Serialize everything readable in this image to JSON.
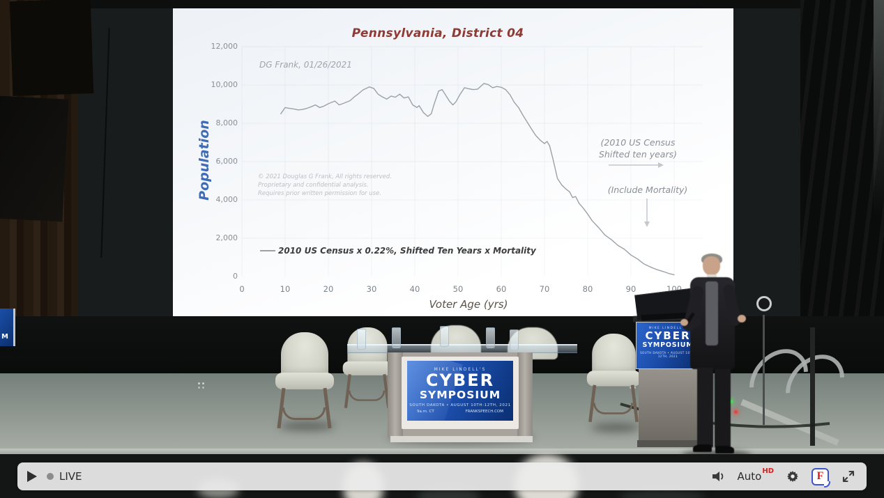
{
  "player": {
    "live_label": "LIVE",
    "quality_label": "Auto",
    "quality_badge": "HD",
    "icons": [
      "play-icon",
      "live-dot",
      "volume-icon",
      "settings-gear-icon",
      "frankspeech-logo-icon",
      "fullscreen-icon"
    ]
  },
  "screen": {
    "title": "Pennsylvania, District 04",
    "watermark": "DG Frank, 01/26/2021",
    "ylabel": "Population",
    "xlabel": "Voter Age (yrs)",
    "legend_label": "2010 US Census x 0.22%, Shifted Ten Years x Mortality",
    "copyright_lines": [
      "© 2021 Douglas G Frank, All rights reserved.",
      "Proprietary and confidential analysis.",
      "Requires prior written permission for use."
    ],
    "annotation_census": [
      "(2010 US Census",
      "Shifted ten years)"
    ],
    "annotation_mortality": "(Include Mortality)"
  },
  "chart_data": {
    "type": "line",
    "title": "Pennsylvania, District 04",
    "xlabel": "Voter Age (yrs)",
    "ylabel": "Population",
    "xlim": [
      0,
      100
    ],
    "ylim": [
      0,
      12000
    ],
    "x_ticks": [
      0,
      10,
      20,
      30,
      40,
      50,
      60,
      70,
      80,
      90,
      100
    ],
    "y_ticks": [
      0,
      2000,
      4000,
      6000,
      8000,
      10000,
      12000
    ],
    "y_tick_labels": [
      "0",
      "2,000",
      "4,000",
      "6,000",
      "8,000",
      "10,000",
      "12,000"
    ],
    "grid": "faint",
    "legend_position": "lower-left-inside",
    "annotations": [
      "(2010 US Census Shifted ten years) → right arrow",
      "(Include Mortality) ↓ down arrow"
    ],
    "series": [
      {
        "name": "2010 US Census x 0.22%, Shifted Ten Years x Mortality",
        "color": "#9ba1a7",
        "points": [
          [
            9,
            8500
          ],
          [
            10,
            8820
          ],
          [
            11,
            8780
          ],
          [
            12,
            8750
          ],
          [
            13,
            8700
          ],
          [
            14,
            8720
          ],
          [
            15,
            8780
          ],
          [
            16,
            8860
          ],
          [
            17,
            8960
          ],
          [
            18,
            8820
          ],
          [
            19,
            8900
          ],
          [
            20,
            9020
          ],
          [
            21.5,
            9160
          ],
          [
            22.5,
            8960
          ],
          [
            23.5,
            9040
          ],
          [
            25,
            9180
          ],
          [
            26,
            9380
          ],
          [
            27,
            9550
          ],
          [
            28,
            9740
          ],
          [
            29.5,
            9900
          ],
          [
            30.5,
            9820
          ],
          [
            31.5,
            9520
          ],
          [
            32.5,
            9380
          ],
          [
            33.5,
            9260
          ],
          [
            34.5,
            9420
          ],
          [
            35.5,
            9360
          ],
          [
            36.5,
            9520
          ],
          [
            37.5,
            9320
          ],
          [
            38.5,
            9380
          ],
          [
            39.5,
            8960
          ],
          [
            40.5,
            8820
          ],
          [
            41,
            8920
          ],
          [
            42,
            8560
          ],
          [
            43,
            8360
          ],
          [
            43.8,
            8500
          ],
          [
            44.5,
            9020
          ],
          [
            45.5,
            9680
          ],
          [
            46.3,
            9760
          ],
          [
            47,
            9520
          ],
          [
            48,
            9160
          ],
          [
            48.8,
            8960
          ],
          [
            49.5,
            9120
          ],
          [
            50.5,
            9520
          ],
          [
            51.5,
            9860
          ],
          [
            52.5,
            9800
          ],
          [
            53.5,
            9760
          ],
          [
            54.5,
            9780
          ],
          [
            56,
            10080
          ],
          [
            57,
            10020
          ],
          [
            58,
            9860
          ],
          [
            59,
            9920
          ],
          [
            60,
            9880
          ],
          [
            61,
            9760
          ],
          [
            62,
            9500
          ],
          [
            63,
            9100
          ],
          [
            64,
            8820
          ],
          [
            65,
            8420
          ],
          [
            66,
            8060
          ],
          [
            67,
            7700
          ],
          [
            68,
            7360
          ],
          [
            69,
            7120
          ],
          [
            70,
            6940
          ],
          [
            70.6,
            7050
          ],
          [
            71.2,
            6820
          ],
          [
            72,
            6100
          ],
          [
            73,
            5120
          ],
          [
            74,
            4780
          ],
          [
            75,
            4560
          ],
          [
            75.8,
            4420
          ],
          [
            76.5,
            4120
          ],
          [
            77.2,
            4180
          ],
          [
            78,
            3820
          ],
          [
            79,
            3560
          ],
          [
            80,
            3260
          ],
          [
            81,
            2920
          ],
          [
            82.5,
            2560
          ],
          [
            84,
            2160
          ],
          [
            85.5,
            1920
          ],
          [
            87,
            1620
          ],
          [
            88.5,
            1420
          ],
          [
            90,
            1120
          ],
          [
            91.5,
            920
          ],
          [
            93,
            660
          ],
          [
            94.5,
            500
          ],
          [
            96,
            360
          ],
          [
            97.5,
            260
          ],
          [
            99,
            140
          ],
          [
            100,
            90
          ]
        ]
      }
    ]
  },
  "stage": {
    "desk_sign": {
      "brand": "MIKE LINDELL'S",
      "title1": "CYBER",
      "title2": "SYMPOSIUM",
      "date_line": "SOUTH DAKOTA • AUGUST 10TH-12TH, 2021",
      "time_left": "9a.m. CT",
      "site_right": "FRANKSPEECH.COM"
    },
    "podium_sign": {
      "brand": "MIKE LINDELL'S",
      "title1": "CYBER",
      "title2": "SYMPOSIUM",
      "date_line": "SOUTH DAKOTA • AUGUST 10TH-12TH, 2021"
    },
    "left_sign_text": "M"
  },
  "colors": {
    "title_maroon": "#8e3a35",
    "population_blue": "#3f6cb5",
    "curve_gray": "#9ba1a7",
    "desk_blue_top": "#2f6fd8",
    "desk_blue_bottom": "#0a2f72",
    "hd_red": "#e01a1a",
    "frank_red": "#d62020",
    "frank_blue": "#3c55cc"
  }
}
